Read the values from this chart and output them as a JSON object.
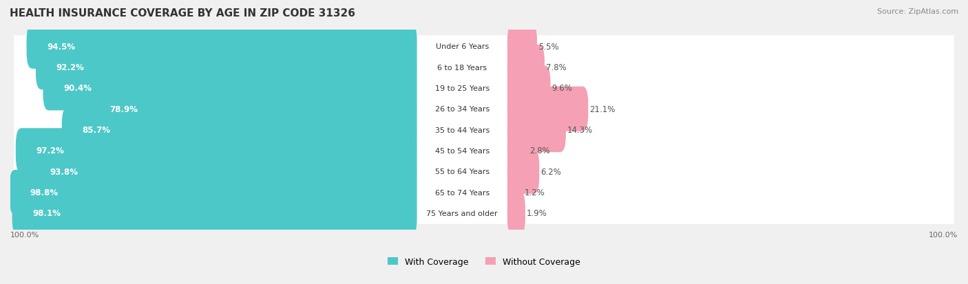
{
  "title": "HEALTH INSURANCE COVERAGE BY AGE IN ZIP CODE 31326",
  "source": "Source: ZipAtlas.com",
  "categories": [
    "Under 6 Years",
    "6 to 18 Years",
    "19 to 25 Years",
    "26 to 34 Years",
    "35 to 44 Years",
    "45 to 54 Years",
    "55 to 64 Years",
    "65 to 74 Years",
    "75 Years and older"
  ],
  "with_coverage": [
    94.5,
    92.2,
    90.4,
    78.9,
    85.7,
    97.2,
    93.8,
    98.8,
    98.1
  ],
  "without_coverage": [
    5.5,
    7.8,
    9.6,
    21.1,
    14.3,
    2.8,
    6.2,
    1.2,
    1.9
  ],
  "color_with": "#4DC8C8",
  "color_without": "#F5A0B5",
  "bg_color": "#F0F0F0",
  "bar_bg": "#FFFFFF",
  "title_fontsize": 11,
  "label_fontsize": 8.5,
  "tick_fontsize": 8,
  "legend_fontsize": 9,
  "source_fontsize": 8
}
